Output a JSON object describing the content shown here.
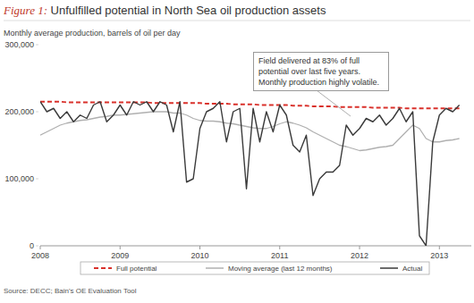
{
  "chart_data": {
    "type": "line",
    "title": "Figure 1: Unfulfilled potential in North Sea oil production assets",
    "subtitle": "Monthly average production, barrels of oil per day",
    "annotation": "Field delivered at 83% of full potential over last five years. Monthly production highly volatile.",
    "source": "Source: DECC; Bain's OE Evaluation Tool",
    "x": [
      2008,
      2008.083,
      2008.167,
      2008.25,
      2008.333,
      2008.417,
      2008.5,
      2008.583,
      2008.667,
      2008.75,
      2008.833,
      2008.917,
      2009,
      2009.083,
      2009.167,
      2009.25,
      2009.333,
      2009.417,
      2009.5,
      2009.583,
      2009.667,
      2009.75,
      2009.833,
      2009.917,
      2010,
      2010.083,
      2010.167,
      2010.25,
      2010.333,
      2010.417,
      2010.5,
      2010.583,
      2010.667,
      2010.75,
      2010.833,
      2010.917,
      2011,
      2011.083,
      2011.167,
      2011.25,
      2011.333,
      2011.417,
      2011.5,
      2011.583,
      2011.667,
      2011.75,
      2011.833,
      2011.917,
      2012,
      2012.083,
      2012.167,
      2012.25,
      2012.333,
      2012.417,
      2012.5,
      2012.583,
      2012.667,
      2012.75,
      2012.833,
      2012.917,
      2013,
      2013.083,
      2013.167,
      2013.25
    ],
    "series": [
      {
        "name": "Full potential",
        "color": "#d9312b",
        "line_style": "dashed",
        "values": [
          215000,
          215000,
          215000,
          215000,
          214000,
          214000,
          214000,
          214000,
          214000,
          214000,
          214000,
          214000,
          214000,
          214000,
          214000,
          214000,
          214000,
          213000,
          213000,
          213000,
          213000,
          213000,
          213000,
          213000,
          213000,
          212000,
          212000,
          212000,
          212000,
          211000,
          211000,
          211000,
          211000,
          210000,
          210000,
          210000,
          210000,
          210000,
          209000,
          209000,
          209000,
          208000,
          208000,
          208000,
          208000,
          207000,
          207000,
          207000,
          207000,
          207000,
          206000,
          206000,
          206000,
          206000,
          206000,
          205000,
          205000,
          205000,
          205000,
          205000,
          205000,
          205000,
          205000,
          205000
        ]
      },
      {
        "name": "Moving average (last 12 months)",
        "color": "#b0b0b0",
        "line_style": "solid",
        "values": [
          165000,
          170000,
          175000,
          180000,
          183000,
          185000,
          187000,
          188000,
          190000,
          192000,
          193000,
          195000,
          195000,
          196000,
          197000,
          198000,
          199000,
          200000,
          200000,
          200000,
          198000,
          198000,
          195000,
          190000,
          187000,
          186000,
          186000,
          185000,
          183000,
          182000,
          180000,
          178000,
          176000,
          175000,
          175000,
          178000,
          182000,
          185000,
          183000,
          180000,
          176000,
          170000,
          165000,
          160000,
          155000,
          150000,
          148000,
          145000,
          142000,
          143000,
          145000,
          147000,
          148000,
          150000,
          160000,
          170000,
          180000,
          175000,
          160000,
          155000,
          155000,
          157000,
          158000,
          160000
        ]
      },
      {
        "name": "Actual",
        "color": "#3a3a3a",
        "line_style": "solid",
        "values": [
          215000,
          200000,
          205000,
          190000,
          200000,
          185000,
          195000,
          190000,
          210000,
          215000,
          185000,
          195000,
          210000,
          195000,
          215000,
          210000,
          215000,
          200000,
          215000,
          210000,
          170000,
          215000,
          95000,
          100000,
          175000,
          200000,
          205000,
          215000,
          155000,
          200000,
          205000,
          85000,
          205000,
          155000,
          200000,
          170000,
          210000,
          195000,
          150000,
          140000,
          165000,
          75000,
          100000,
          110000,
          110000,
          120000,
          180000,
          165000,
          175000,
          190000,
          185000,
          195000,
          180000,
          190000,
          205000,
          185000,
          200000,
          15000,
          0,
          155000,
          195000,
          205000,
          200000,
          210000
        ]
      }
    ],
    "xlim": [
      2008,
      2013.4
    ],
    "xticks": [
      2008,
      2009,
      2010,
      2011,
      2012,
      2013
    ],
    "ylim": [
      0,
      300000
    ],
    "yticks": [
      0,
      {
        "value": 100000,
        "label": "100,000"
      },
      {
        "value": 200000,
        "label": "200,000"
      },
      {
        "value": 300000,
        "label": "300,000"
      }
    ],
    "grid": false,
    "legend": "bottom"
  }
}
